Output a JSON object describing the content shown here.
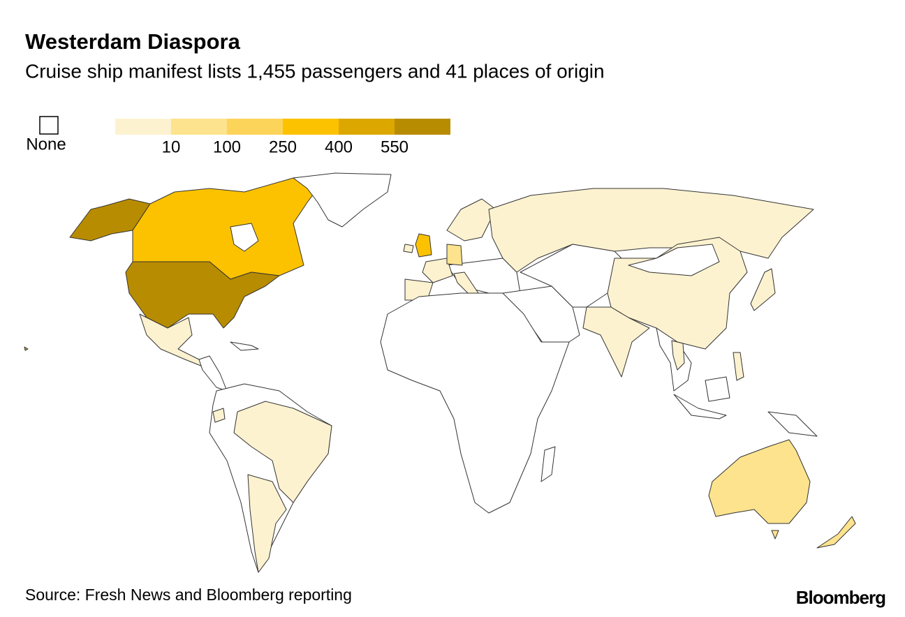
{
  "header": {
    "title": "Westerdam Diaspora",
    "subtitle": "Cruise ship manifest lists 1,455 passengers and 41 places of origin"
  },
  "legend": {
    "none_label": "None",
    "colors": [
      "#fdf2d0",
      "#fde38d",
      "#fdd45a",
      "#fcc200",
      "#dca800",
      "#b88c00"
    ],
    "ticks": [
      10,
      100,
      250,
      400,
      550
    ]
  },
  "footer": {
    "source": "Source: Fresh News and Bloomberg reporting",
    "brand": "Bloomberg"
  }
}
